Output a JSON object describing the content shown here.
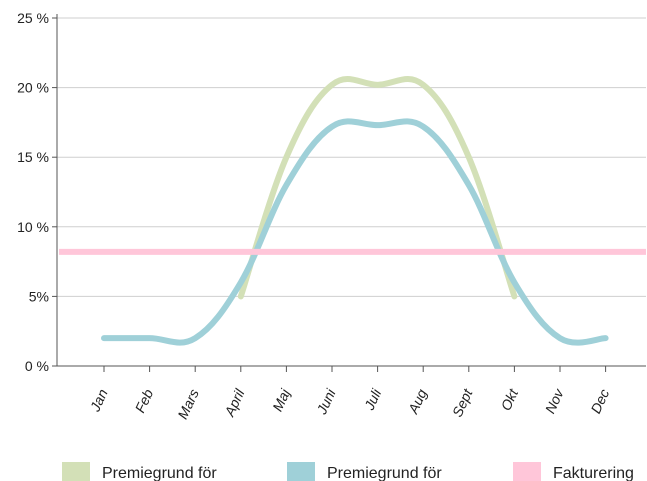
{
  "chart_data": {
    "type": "line",
    "categories": [
      "Jan",
      "Feb",
      "Mars",
      "April",
      "Maj",
      "Juni",
      "Juli",
      "Aug",
      "Sept",
      "Okt",
      "Nov",
      "Dec"
    ],
    "y_ticks": [
      "0 %",
      "5%",
      "10 %",
      "15 %",
      "20 %",
      "25 %"
    ],
    "ylim": [
      0,
      25
    ],
    "grid": "horizontal",
    "legend_position": "bottom",
    "series": [
      {
        "name": "Premiegrund för",
        "color": "#d3e0b7",
        "points": [
          [
            3,
            5
          ],
          [
            4,
            15
          ],
          [
            5,
            20.2
          ],
          [
            6,
            20.2
          ],
          [
            7,
            20.2
          ],
          [
            8,
            15
          ],
          [
            9,
            5
          ]
        ]
      },
      {
        "name": "Premiegrund för",
        "color": "#9fd0d8",
        "points": [
          [
            0,
            2
          ],
          [
            1,
            2
          ],
          [
            2,
            2
          ],
          [
            3,
            6
          ],
          [
            4,
            13
          ],
          [
            5,
            17.2
          ],
          [
            6,
            17.3
          ],
          [
            7,
            17.2
          ],
          [
            8,
            13
          ],
          [
            9,
            6
          ],
          [
            10,
            2
          ],
          [
            11,
            2
          ]
        ]
      },
      {
        "name": "Fakturering",
        "color": "#ffc6d9",
        "constant": 8.2
      }
    ]
  }
}
